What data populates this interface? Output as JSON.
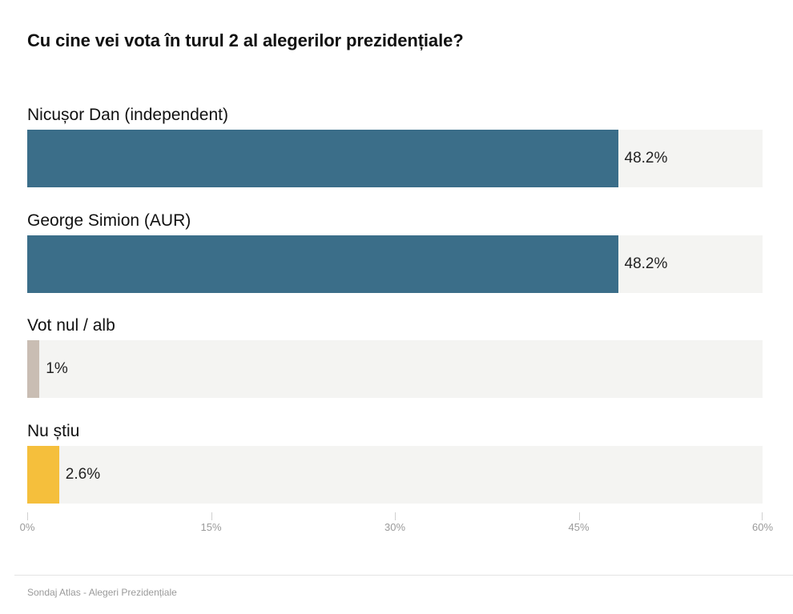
{
  "chart_data": {
    "type": "bar",
    "orientation": "horizontal",
    "title": "Cu cine vei vota în turul 2 al alegerilor prezidențiale?",
    "categories": [
      "Nicușor Dan (independent)",
      "George Simion (AUR)",
      "Vot nul / alb",
      "Nu știu"
    ],
    "values": [
      48.2,
      48.2,
      1,
      2.6
    ],
    "value_labels": [
      "48.2%",
      "48.2%",
      "1%",
      "2.6%"
    ],
    "colors": [
      "#3b6e89",
      "#3b6e89",
      "#c9bdb3",
      "#f5bf3c"
    ],
    "xlim": [
      0,
      60
    ],
    "x_ticks": [
      0,
      15,
      30,
      45,
      60
    ],
    "x_tick_labels": [
      "0%",
      "15%",
      "30%",
      "45%",
      "60%"
    ],
    "grid": false,
    "legend": "none"
  },
  "source": "Sondaj Atlas - Alegeri Prezidențiale"
}
